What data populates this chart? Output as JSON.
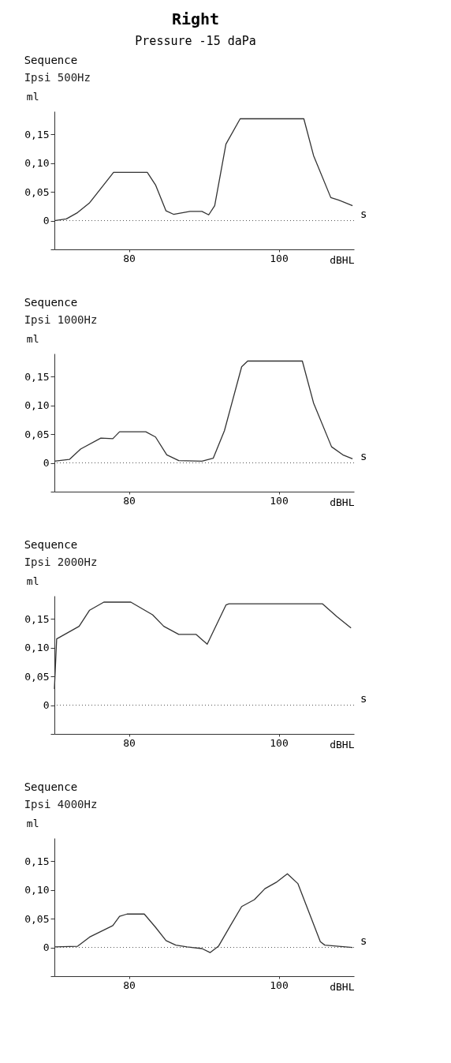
{
  "chart_data": [
    {
      "type": "line",
      "title": "Sequence",
      "subtitle": "Ipsi 500Hz",
      "xlabel": "dBHL",
      "ylabel": "ml",
      "annotations": [
        "Right",
        "Pressure -15 daPa",
        "s"
      ],
      "xlim": [
        70,
        110
      ],
      "xticks": [
        80,
        100
      ],
      "ylim": [
        -0.05,
        0.19
      ],
      "yticks": [
        {
          "value": -0.05,
          "label": null
        },
        {
          "value": 0,
          "label": "0"
        },
        {
          "value": 0.05,
          "label": "0,05"
        },
        {
          "value": 0.1,
          "label": "0,10"
        },
        {
          "value": 0.15,
          "label": "0,15"
        }
      ],
      "grid": false,
      "ref_lines": [
        {
          "axis": "y",
          "value": 0,
          "label": null,
          "line_style": "dotted"
        }
      ],
      "series": [
        {
          "color": "#333333",
          "x": [
            70,
            71.6,
            73.1,
            74.7,
            77.9,
            82.4,
            83.5,
            84.9,
            85.9,
            88.1,
            89.7,
            90.6,
            91.4,
            92.9,
            94.8,
            103.3,
            104.6,
            106.9,
            107.9,
            109.8
          ],
          "values": [
            0,
            0.003,
            0.014,
            0.031,
            0.084,
            0.084,
            0.062,
            0.017,
            0.011,
            0.016,
            0.016,
            0.01,
            0.026,
            0.133,
            0.177,
            0.177,
            0.113,
            0.04,
            0.036,
            0.026
          ]
        }
      ]
    },
    {
      "type": "line",
      "title": "Sequence",
      "subtitle": "Ipsi 1000Hz",
      "xlabel": "dBHL",
      "ylabel": "ml",
      "annotations": [
        "s"
      ],
      "xlim": [
        70,
        110
      ],
      "xticks": [
        80,
        100
      ],
      "ylim": [
        -0.05,
        0.19
      ],
      "yticks": [
        {
          "value": -0.05,
          "label": null
        },
        {
          "value": 0,
          "label": "0"
        },
        {
          "value": 0.05,
          "label": "0,05"
        },
        {
          "value": 0.1,
          "label": "0,10"
        },
        {
          "value": 0.15,
          "label": "0,15"
        }
      ],
      "grid": false,
      "ref_lines": [
        {
          "axis": "y",
          "value": 0,
          "label": null,
          "line_style": "dotted"
        }
      ],
      "series": [
        {
          "color": "#333333",
          "x": [
            70,
            72,
            73.5,
            76.2,
            77.8,
            78.7,
            82.2,
            83.5,
            85,
            86.6,
            89.7,
            91.2,
            92.7,
            95,
            95.8,
            103.1,
            104.6,
            107,
            108.5,
            109.8
          ],
          "values": [
            0.003,
            0.006,
            0.024,
            0.043,
            0.042,
            0.054,
            0.054,
            0.045,
            0.014,
            0.004,
            0.003,
            0.008,
            0.056,
            0.167,
            0.177,
            0.177,
            0.104,
            0.028,
            0.014,
            0.007
          ]
        }
      ]
    },
    {
      "type": "line",
      "title": "Sequence",
      "subtitle": "Ipsi 2000Hz",
      "xlabel": "dBHL",
      "ylabel": "ml",
      "annotations": [
        "s"
      ],
      "xlim": [
        70,
        110
      ],
      "xticks": [
        80,
        100
      ],
      "ylim": [
        -0.05,
        0.19
      ],
      "yticks": [
        {
          "value": -0.05,
          "label": null
        },
        {
          "value": 0,
          "label": "0"
        },
        {
          "value": 0.05,
          "label": "0,05"
        },
        {
          "value": 0.1,
          "label": "0,10"
        },
        {
          "value": 0.15,
          "label": "0,15"
        }
      ],
      "grid": false,
      "ref_lines": [
        {
          "axis": "y",
          "value": 0,
          "label": null,
          "line_style": "dotted"
        }
      ],
      "series": [
        {
          "color": "#333333",
          "x": [
            70,
            70.3,
            73.3,
            74.7,
            76.6,
            80.2,
            83.1,
            84.6,
            86.6,
            88.9,
            90.4,
            92.9,
            93.3,
            105.8,
            107.7,
            109.6
          ],
          "values": [
            0.028,
            0.115,
            0.137,
            0.165,
            0.179,
            0.179,
            0.157,
            0.137,
            0.123,
            0.123,
            0.106,
            0.174,
            0.176,
            0.176,
            0.154,
            0.134
          ]
        }
      ]
    },
    {
      "type": "line",
      "title": "Sequence",
      "subtitle": "Ipsi 4000Hz",
      "xlabel": "dBHL",
      "ylabel": "ml",
      "annotations": [
        "s"
      ],
      "xlim": [
        70,
        110
      ],
      "xticks": [
        80,
        100
      ],
      "ylim": [
        -0.05,
        0.19
      ],
      "yticks": [
        {
          "value": -0.05,
          "label": null
        },
        {
          "value": 0,
          "label": "0"
        },
        {
          "value": 0.05,
          "label": "0,05"
        },
        {
          "value": 0.1,
          "label": "0,10"
        },
        {
          "value": 0.15,
          "label": "0,15"
        }
      ],
      "grid": false,
      "ref_lines": [
        {
          "axis": "y",
          "value": 0,
          "label": null,
          "line_style": "dotted"
        }
      ],
      "series": [
        {
          "color": "#333333",
          "x": [
            70,
            73.1,
            74.7,
            77.8,
            78.7,
            79.7,
            82,
            83.5,
            84.9,
            86.2,
            87.7,
            89.7,
            90.8,
            91.9,
            93.5,
            95,
            96.7,
            98.1,
            99.6,
            101.1,
            102.5,
            105.5,
            106.1,
            109.8
          ],
          "values": [
            0.001,
            0.002,
            0.018,
            0.038,
            0.054,
            0.058,
            0.058,
            0.035,
            0.012,
            0.004,
            0.001,
            -0.002,
            -0.009,
            0.002,
            0.038,
            0.071,
            0.083,
            0.102,
            0.113,
            0.128,
            0.111,
            0.01,
            0.004,
            0
          ]
        }
      ]
    }
  ]
}
